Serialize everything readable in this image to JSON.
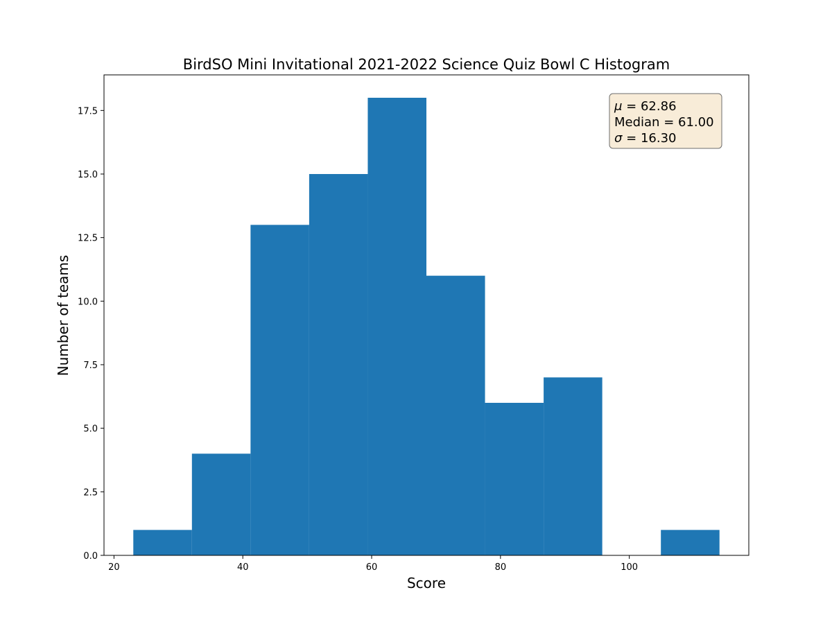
{
  "chart_data": {
    "type": "bar",
    "title": "BirdSO Mini Invitational 2021-2022 Science Quiz Bowl C Histogram",
    "xlabel": "Score",
    "ylabel": "Number of teams",
    "bin_edges": [
      23.0,
      32.1,
      41.2,
      50.3,
      59.4,
      68.5,
      77.6,
      86.7,
      95.8,
      104.9,
      114.0
    ],
    "counts": [
      1,
      4,
      13,
      15,
      18,
      11,
      6,
      7,
      0,
      1
    ],
    "xlim": [
      18.45,
      118.55
    ],
    "ylim": [
      0,
      18.9
    ],
    "x_ticks": [
      20,
      40,
      60,
      80,
      100
    ],
    "x_tick_labels": [
      "20",
      "40",
      "60",
      "80",
      "100"
    ],
    "y_ticks": [
      0,
      2.5,
      5,
      7.5,
      10,
      12.5,
      15,
      17.5
    ],
    "y_tick_labels": [
      "0.0",
      "2.5",
      "5.0",
      "7.5",
      "10.0",
      "12.5",
      "15.0",
      "17.5"
    ],
    "bar_color": "#1f77b4",
    "grid": false,
    "legend": "none",
    "stats_box": {
      "position": "top-right",
      "lines": [
        {
          "symbol": "μ",
          "sep": " = ",
          "value": "62.86"
        },
        {
          "symbol": "Median",
          "sep": " = ",
          "value": "61.00"
        },
        {
          "symbol": "σ",
          "sep": " = ",
          "value": "16.30"
        }
      ],
      "background": "#f8ecd8",
      "border": "#6e6e6e"
    }
  }
}
